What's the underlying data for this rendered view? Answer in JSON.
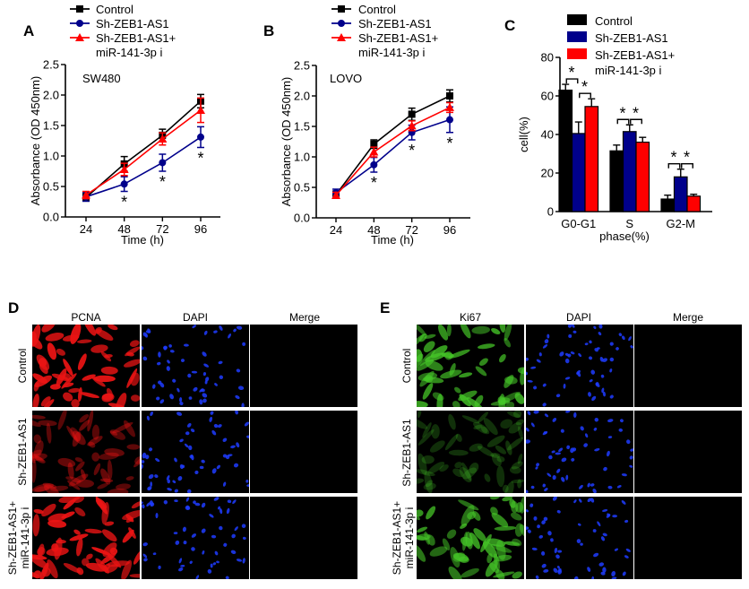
{
  "chart_data": [
    {
      "panel": "A",
      "type": "line",
      "annotation": "SW480",
      "xlabel": "Time (h)",
      "ylabel": "Absorbance (OD 450nm)",
      "x": [
        24,
        48,
        72,
        96
      ],
      "ylim": [
        0,
        2.5
      ],
      "yticks": [
        "0.0",
        "0.5",
        "1.0",
        "1.5",
        "2.0",
        "2.5"
      ],
      "xticks": [
        "24",
        "48",
        "72",
        "96"
      ],
      "legend_position": "top",
      "series": [
        {
          "name": "Control",
          "color": "#000000",
          "marker": "square",
          "values": [
            0.32,
            0.87,
            1.34,
            1.9
          ],
          "errors": [
            0.06,
            0.12,
            0.1,
            0.11
          ]
        },
        {
          "name": "Sh-ZEB1-AS1",
          "color": "#00008b",
          "marker": "circle",
          "values": [
            0.33,
            0.54,
            0.89,
            1.31
          ],
          "errors": [
            0.07,
            0.12,
            0.14,
            0.17
          ]
        },
        {
          "name_line1": "Sh-ZEB1-AS1+",
          "name_line2": "miR-141-3p i",
          "color": "#ff0000",
          "marker": "triangle",
          "values": [
            0.36,
            0.78,
            1.28,
            1.75
          ],
          "errors": [
            0.06,
            0.1,
            0.1,
            0.2
          ]
        }
      ],
      "significance": [
        {
          "x": 48,
          "label": "*"
        },
        {
          "x": 72,
          "label": "*"
        },
        {
          "x": 96,
          "label": "*"
        }
      ]
    },
    {
      "panel": "B",
      "type": "line",
      "annotation": "LOVO",
      "xlabel": "Time (h)",
      "ylabel": "Absorbance (OD 450nm)",
      "x": [
        24,
        48,
        72,
        96
      ],
      "ylim": [
        0,
        2.5
      ],
      "yticks": [
        "0.0",
        "0.5",
        "1.0",
        "1.5",
        "2.0",
        "2.5"
      ],
      "xticks": [
        "24",
        "48",
        "72",
        "96"
      ],
      "legend_position": "top",
      "series": [
        {
          "name": "Control",
          "color": "#000000",
          "marker": "square",
          "values": [
            0.38,
            1.21,
            1.7,
            2.0
          ],
          "errors": [
            0.06,
            0.07,
            0.1,
            0.1
          ]
        },
        {
          "name": "Sh-ZEB1-AS1",
          "color": "#00008b",
          "marker": "circle",
          "values": [
            0.41,
            0.87,
            1.4,
            1.61
          ],
          "errors": [
            0.06,
            0.12,
            0.12,
            0.21
          ]
        },
        {
          "name_line1": "Sh-ZEB1-AS1+",
          "name_line2": "miR-141-3p i",
          "color": "#ff0000",
          "marker": "triangle",
          "values": [
            0.37,
            1.08,
            1.51,
            1.81
          ],
          "errors": [
            0.05,
            0.08,
            0.08,
            0.08
          ]
        }
      ],
      "significance": [
        {
          "x": 48,
          "label": "*"
        },
        {
          "x": 72,
          "label": "*"
        },
        {
          "x": 96,
          "label": "*"
        }
      ]
    },
    {
      "panel": "C",
      "type": "bar",
      "xlabel": "phase(%)",
      "ylabel": "cell(%)",
      "categories": [
        "G0-G1",
        "S",
        "G2-M"
      ],
      "ylim": [
        0,
        80
      ],
      "yticks": [
        "0",
        "20",
        "40",
        "60",
        "80"
      ],
      "legend_position": "top",
      "series": [
        {
          "name": "Control",
          "color": "#000000",
          "values": [
            63,
            31.5,
            6.5
          ],
          "errors": [
            3,
            3,
            2
          ]
        },
        {
          "name": "Sh-ZEB1-AS1",
          "color": "#00008b",
          "values": [
            40.5,
            41.5,
            18
          ],
          "errors": [
            6,
            3.5,
            4
          ]
        },
        {
          "name_line1": "Sh-ZEB1-AS1+",
          "name_line2": "miR-141-3p i",
          "color": "#ff0000",
          "values": [
            54.5,
            36,
            8
          ],
          "errors": [
            4,
            2.5,
            1
          ]
        }
      ],
      "significance_label": "*"
    }
  ],
  "panel_d": {
    "letter": "D",
    "columns": [
      "PCNA",
      "DAPI",
      "Merge"
    ],
    "rows": [
      {
        "line1": "Control",
        "line2": ""
      },
      {
        "line1": "Sh-ZEB1-AS1",
        "line2": ""
      },
      {
        "line1": "Sh-ZEB1-AS1+",
        "line2": "miR-141-3p i"
      }
    ]
  },
  "panel_e": {
    "letter": "E",
    "columns": [
      "Ki67",
      "DAPI",
      "Merge"
    ],
    "rows": [
      {
        "line1": "Control",
        "line2": ""
      },
      {
        "line1": "Sh-ZEB1-AS1",
        "line2": ""
      },
      {
        "line1": "Sh-ZEB1-AS1+",
        "line2": "miR-141-3p i"
      }
    ]
  }
}
